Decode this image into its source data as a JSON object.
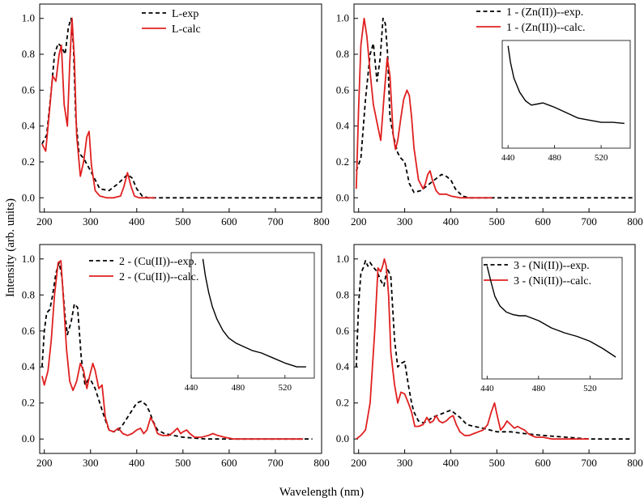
{
  "figure": {
    "ylabel": "Intensity (arb. units)",
    "xlabel": "Wavelength (nm)"
  },
  "chart_data": [
    {
      "type": "line",
      "xlim": [
        190,
        800
      ],
      "ylim": [
        -0.08,
        1.08
      ],
      "x_ticks": [
        200,
        300,
        400,
        500,
        600,
        700,
        800
      ],
      "y_ticks": [
        0.0,
        0.2,
        0.4,
        0.6,
        0.8,
        1.0
      ],
      "legend": [
        "L-exp",
        "L-calc"
      ],
      "series": [
        {
          "name": "L-exp",
          "style": "dashed",
          "color": "#000000",
          "x": [
            195,
            205,
            215,
            222,
            230,
            238,
            245,
            252,
            258,
            263,
            268,
            275,
            285,
            300,
            320,
            340,
            360,
            380,
            390,
            400,
            412,
            425,
            440,
            460,
            500,
            600,
            700,
            800
          ],
          "y": [
            0.3,
            0.35,
            0.6,
            0.8,
            0.86,
            0.84,
            0.8,
            0.95,
            1.0,
            0.85,
            0.45,
            0.25,
            0.22,
            0.15,
            0.05,
            0.04,
            0.08,
            0.13,
            0.11,
            0.05,
            0.01,
            0.0,
            0.0,
            0.0,
            0.0,
            0.0,
            0.0,
            0.0
          ]
        },
        {
          "name": "L-calc",
          "style": "solid",
          "color": "#e02020",
          "x": [
            195,
            203,
            210,
            218,
            225,
            232,
            237,
            243,
            250,
            255,
            260,
            265,
            270,
            278,
            285,
            292,
            297,
            302,
            310,
            320,
            335,
            350,
            365,
            372,
            380,
            388,
            395,
            405,
            420,
            440
          ],
          "y": [
            0.3,
            0.26,
            0.45,
            0.68,
            0.65,
            0.8,
            0.85,
            0.52,
            0.4,
            0.75,
            1.0,
            0.78,
            0.35,
            0.12,
            0.2,
            0.34,
            0.37,
            0.18,
            0.04,
            0.01,
            0.0,
            0.0,
            0.01,
            0.06,
            0.14,
            0.06,
            0.01,
            0.0,
            0.0,
            0.0
          ]
        }
      ]
    },
    {
      "type": "line",
      "xlim": [
        190,
        800
      ],
      "ylim": [
        -0.08,
        1.08
      ],
      "x_ticks": [
        200,
        300,
        400,
        500,
        600,
        700,
        800
      ],
      "y_ticks": [
        0.0,
        0.2,
        0.4,
        0.6,
        0.8,
        1.0
      ],
      "legend": [
        "1 - (Zn(II))--exp.",
        "1 - (Zn(II))--calc."
      ],
      "series": [
        {
          "name": "1 - (Zn(II))--exp.",
          "style": "dashed",
          "color": "#000000",
          "x": [
            195,
            205,
            215,
            225,
            232,
            240,
            247,
            253,
            258,
            263,
            268,
            275,
            285,
            292,
            300,
            310,
            320,
            335,
            350,
            365,
            380,
            390,
            400,
            410,
            425,
            440,
            460,
            500,
            600,
            700,
            800
          ],
          "y": [
            0.15,
            0.22,
            0.55,
            0.8,
            0.86,
            0.65,
            0.78,
            1.0,
            0.97,
            0.8,
            0.45,
            0.35,
            0.25,
            0.22,
            0.2,
            0.08,
            0.03,
            0.04,
            0.07,
            0.1,
            0.13,
            0.12,
            0.1,
            0.05,
            0.01,
            0.0,
            0.0,
            0.0,
            0.0,
            0.0,
            0.0
          ]
        },
        {
          "name": "1 - (Zn(II))--calc.",
          "style": "solid",
          "color": "#e02020",
          "x": [
            195,
            200,
            205,
            212,
            218,
            225,
            232,
            240,
            248,
            255,
            262,
            268,
            275,
            280,
            285,
            292,
            298,
            305,
            310,
            315,
            320,
            330,
            340,
            345,
            350,
            355,
            360,
            368,
            375,
            382,
            390,
            400,
            420,
            450,
            490
          ],
          "y": [
            0.05,
            0.5,
            0.85,
            1.0,
            0.9,
            0.7,
            0.52,
            0.42,
            0.32,
            0.56,
            0.78,
            0.68,
            0.35,
            0.27,
            0.32,
            0.45,
            0.55,
            0.6,
            0.57,
            0.45,
            0.28,
            0.1,
            0.05,
            0.08,
            0.13,
            0.15,
            0.1,
            0.04,
            0.02,
            0.02,
            0.02,
            0.01,
            0.0,
            0.0,
            0.0
          ]
        }
      ],
      "inset": {
        "xlim": [
          435,
          545
        ],
        "x_ticks": [
          440,
          480,
          520
        ],
        "x": [
          440,
          442,
          445,
          450,
          455,
          460,
          465,
          470,
          475,
          480,
          490,
          500,
          510,
          520,
          530,
          540
        ],
        "y": [
          0.95,
          0.8,
          0.65,
          0.52,
          0.44,
          0.4,
          0.41,
          0.42,
          0.4,
          0.38,
          0.33,
          0.28,
          0.26,
          0.24,
          0.24,
          0.23
        ]
      }
    },
    {
      "type": "line",
      "xlim": [
        190,
        800
      ],
      "ylim": [
        -0.08,
        1.08
      ],
      "x_ticks": [
        200,
        300,
        400,
        500,
        600,
        700,
        800
      ],
      "y_ticks": [
        0.0,
        0.2,
        0.4,
        0.6,
        0.8,
        1.0
      ],
      "legend": [
        "2 - (Cu(II))--exp.",
        "2 - (Cu(II))--calc."
      ],
      "series": [
        {
          "name": "2 - (Cu(II))--exp.",
          "style": "dashed",
          "color": "#000000",
          "x": [
            195,
            200,
            205,
            212,
            218,
            225,
            232,
            238,
            245,
            250,
            258,
            265,
            272,
            280,
            288,
            295,
            302,
            310,
            320,
            330,
            340,
            350,
            360,
            370,
            380,
            390,
            400,
            410,
            420,
            428,
            435,
            445,
            460,
            480,
            500,
            550,
            600,
            700,
            780
          ],
          "y": [
            0.4,
            0.6,
            0.7,
            0.72,
            0.8,
            0.92,
            0.98,
            0.9,
            0.68,
            0.58,
            0.65,
            0.75,
            0.73,
            0.45,
            0.3,
            0.33,
            0.32,
            0.28,
            0.2,
            0.12,
            0.05,
            0.04,
            0.05,
            0.08,
            0.12,
            0.16,
            0.2,
            0.21,
            0.19,
            0.15,
            0.1,
            0.05,
            0.03,
            0.02,
            0.01,
            0.0,
            0.0,
            0.0,
            0.0
          ]
        },
        {
          "name": "2 - (Cu(II))--calc.",
          "style": "solid",
          "color": "#e02020",
          "x": [
            195,
            200,
            208,
            215,
            222,
            230,
            236,
            242,
            248,
            255,
            262,
            270,
            278,
            285,
            292,
            298,
            305,
            310,
            318,
            325,
            332,
            340,
            350,
            360,
            370,
            380,
            390,
            400,
            408,
            415,
            422,
            430,
            438,
            445,
            455,
            470,
            480,
            488,
            495,
            500,
            508,
            515,
            525,
            540,
            555,
            565,
            575,
            590,
            610,
            650,
            700,
            760
          ],
          "y": [
            0.35,
            0.3,
            0.38,
            0.55,
            0.8,
            0.98,
            0.99,
            0.75,
            0.5,
            0.32,
            0.27,
            0.32,
            0.42,
            0.38,
            0.28,
            0.35,
            0.42,
            0.38,
            0.28,
            0.3,
            0.12,
            0.05,
            0.04,
            0.06,
            0.03,
            0.02,
            0.03,
            0.05,
            0.06,
            0.03,
            0.05,
            0.12,
            0.08,
            0.03,
            0.02,
            0.02,
            0.04,
            0.06,
            0.03,
            0.04,
            0.05,
            0.03,
            0.01,
            0.01,
            0.02,
            0.03,
            0.02,
            0.01,
            0.0,
            0.0,
            0.0,
            0.0
          ]
        }
      ],
      "inset": {
        "xlim": [
          440,
          545
        ],
        "x_ticks": [
          440,
          480,
          520
        ],
        "x": [
          450,
          452,
          455,
          458,
          462,
          467,
          472,
          478,
          485,
          492,
          500,
          510,
          520,
          530,
          538
        ],
        "y": [
          0.95,
          0.82,
          0.68,
          0.57,
          0.47,
          0.38,
          0.32,
          0.28,
          0.25,
          0.22,
          0.2,
          0.16,
          0.12,
          0.09,
          0.09
        ]
      }
    },
    {
      "type": "line",
      "xlim": [
        190,
        800
      ],
      "ylim": [
        -0.08,
        1.08
      ],
      "x_ticks": [
        200,
        300,
        400,
        500,
        600,
        700,
        800
      ],
      "y_ticks": [
        0.0,
        0.2,
        0.4,
        0.6,
        0.8,
        1.0
      ],
      "legend": [
        "3 - (Ni(II))--exp.",
        "3 - (Ni(II))--calc."
      ],
      "series": [
        {
          "name": "3 - (Ni(II))--exp.",
          "style": "dashed",
          "color": "#000000",
          "x": [
            195,
            200,
            205,
            210,
            215,
            220,
            225,
            230,
            240,
            248,
            255,
            262,
            270,
            278,
            285,
            292,
            300,
            308,
            315,
            320,
            330,
            340,
            350,
            360,
            370,
            380,
            390,
            400,
            410,
            420,
            435,
            450,
            470,
            500,
            530,
            560,
            600,
            650,
            700,
            760,
            790
          ],
          "y": [
            0.4,
            0.75,
            0.92,
            0.95,
            0.99,
            0.96,
            0.98,
            0.96,
            0.93,
            0.88,
            0.85,
            0.95,
            0.9,
            0.55,
            0.4,
            0.42,
            0.43,
            0.3,
            0.2,
            0.15,
            0.1,
            0.09,
            0.1,
            0.12,
            0.13,
            0.14,
            0.15,
            0.16,
            0.14,
            0.12,
            0.08,
            0.07,
            0.06,
            0.04,
            0.04,
            0.03,
            0.02,
            0.01,
            0.0,
            0.0,
            0.0
          ]
        },
        {
          "name": "3 - (Ni(II))--calc.",
          "style": "solid",
          "color": "#e02020",
          "x": [
            195,
            205,
            215,
            225,
            235,
            242,
            248,
            252,
            256,
            260,
            265,
            270,
            278,
            285,
            292,
            300,
            308,
            315,
            322,
            330,
            340,
            348,
            355,
            362,
            368,
            375,
            382,
            390,
            398,
            405,
            412,
            420,
            430,
            440,
            450,
            460,
            470,
            480,
            488,
            495,
            500,
            508,
            515,
            522,
            530,
            538,
            545,
            552,
            560,
            568,
            575,
            585,
            600,
            620,
            650,
            700
          ],
          "y": [
            0.0,
            0.02,
            0.05,
            0.2,
            0.6,
            0.95,
            0.93,
            0.96,
            1.0,
            0.96,
            0.8,
            0.48,
            0.3,
            0.2,
            0.26,
            0.25,
            0.2,
            0.15,
            0.07,
            0.07,
            0.08,
            0.12,
            0.09,
            0.1,
            0.13,
            0.1,
            0.09,
            0.1,
            0.12,
            0.13,
            0.08,
            0.04,
            0.02,
            0.02,
            0.03,
            0.04,
            0.05,
            0.08,
            0.15,
            0.2,
            0.14,
            0.05,
            0.07,
            0.1,
            0.08,
            0.06,
            0.07,
            0.06,
            0.05,
            0.03,
            0.02,
            0.01,
            0.01,
            0.0,
            0.0,
            0.0
          ]
        }
      ],
      "inset": {
        "xlim": [
          436,
          545
        ],
        "x_ticks": [
          440,
          480,
          520
        ],
        "x": [
          440,
          443,
          446,
          450,
          455,
          460,
          465,
          470,
          475,
          480,
          485,
          490,
          500,
          510,
          520,
          530,
          540
        ],
        "y": [
          0.93,
          0.8,
          0.68,
          0.6,
          0.55,
          0.53,
          0.52,
          0.52,
          0.5,
          0.48,
          0.45,
          0.42,
          0.38,
          0.35,
          0.31,
          0.25,
          0.18
        ]
      }
    }
  ]
}
